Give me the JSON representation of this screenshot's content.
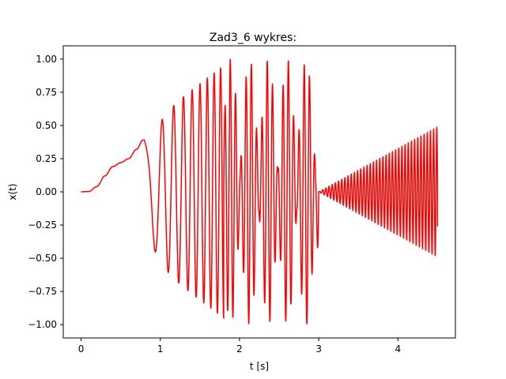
{
  "chart_data": {
    "type": "line",
    "title": "Zad3_6 wykres:",
    "xlabel": "t [s]",
    "ylabel": "x(t)",
    "xlim": [
      -0.225,
      4.725
    ],
    "ylim": [
      -1.1,
      1.1
    ],
    "xticks": [
      0,
      1,
      2,
      3,
      4
    ],
    "xtick_labels": [
      "0",
      "1",
      "2",
      "3",
      "4"
    ],
    "yticks": [
      -1.0,
      -0.75,
      -0.5,
      -0.25,
      0.0,
      0.25,
      0.5,
      0.75,
      1.0
    ],
    "ytick_labels": [
      "−1.00",
      "−0.75",
      "−0.50",
      "−0.25",
      "0.00",
      "0.25",
      "0.50",
      "0.75",
      "1.00"
    ],
    "grid": false,
    "series": [
      {
        "color": "#ff0000",
        "segments": [
          {
            "t_start": 0.0,
            "t_end": 0.5,
            "description": "smooth rise",
            "points": [
              [
                0.0,
                0.0
              ],
              [
                0.1,
                0.003
              ],
              [
                0.2,
                0.04
              ],
              [
                0.3,
                0.12
              ],
              [
                0.4,
                0.19
              ],
              [
                0.5,
                0.22
              ]
            ]
          },
          {
            "t_start": 0.5,
            "t_end": 0.8,
            "description": "shoulder to local peak",
            "points": [
              [
                0.5,
                0.22
              ],
              [
                0.6,
                0.25
              ],
              [
                0.7,
                0.32
              ],
              [
                0.78,
                0.39
              ]
            ]
          },
          {
            "t_start": 0.8,
            "t_end": 1.8,
            "form": "chirp",
            "amp_start": 0.5,
            "amp_end": 0.95,
            "freq_start": 4.5,
            "freq_end": 13
          },
          {
            "t_start": 1.8,
            "t_end": 3.0,
            "form": "beating",
            "amp_max": 1.0,
            "freq": 15
          },
          {
            "t_start": 3.0,
            "t_end": 4.5,
            "form": "linear growth oscillation",
            "amp_start": 0.0,
            "amp_end": 0.49,
            "freq": 25
          }
        ]
      }
    ]
  }
}
